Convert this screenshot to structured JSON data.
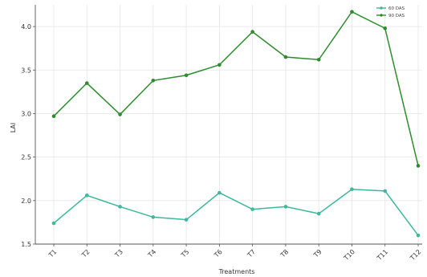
{
  "chart_data": {
    "type": "line",
    "categories": [
      "T1",
      "T2",
      "T3",
      "T4",
      "T5",
      "T6",
      "T7",
      "T8",
      "T9",
      "T10",
      "T11",
      "T12"
    ],
    "series": [
      {
        "name": "60 DAS",
        "color": "#3cb89a",
        "values": [
          1.74,
          2.06,
          1.93,
          1.81,
          1.78,
          2.09,
          1.9,
          1.93,
          1.85,
          2.13,
          2.11,
          1.6
        ]
      },
      {
        "name": "90 DAS",
        "color": "#2e8b2e",
        "values": [
          2.97,
          3.35,
          2.99,
          3.38,
          3.44,
          3.56,
          3.94,
          3.65,
          3.62,
          4.17,
          3.98,
          2.4
        ]
      }
    ],
    "title": "",
    "xlabel": "Treatments",
    "ylabel": "LAI",
    "ylim": [
      1.5,
      4.25
    ],
    "yticks": [
      "1.5",
      "2.0",
      "2.5",
      "3.0",
      "3.5",
      "4.0"
    ],
    "grid": true,
    "legend": "top-right"
  }
}
